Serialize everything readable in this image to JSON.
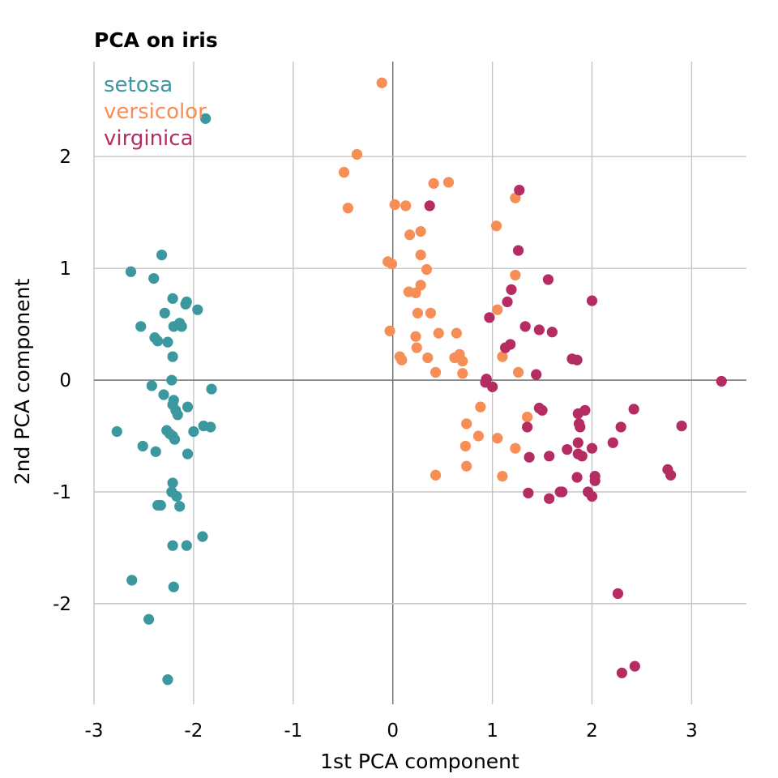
{
  "chart_data": {
    "type": "scatter",
    "title": "PCA on iris",
    "xlabel": "1st PCA component",
    "ylabel": "2nd PCA component",
    "xlim": [
      -3.0,
      3.55
    ],
    "ylim": [
      -2.9,
      2.85
    ],
    "x_ticks": [
      -3,
      -2,
      -1,
      0,
      1,
      2,
      3
    ],
    "y_ticks": [
      -2,
      -1,
      0,
      1,
      2
    ],
    "grid": true,
    "zero_lines": true,
    "legend_position": "top-left",
    "series": [
      {
        "name": "setosa",
        "color": "#3a989e",
        "points": [
          [
            -1.88,
            2.34
          ],
          [
            -2.63,
            0.97
          ],
          [
            -2.4,
            0.91
          ],
          [
            -2.32,
            1.12
          ],
          [
            -2.53,
            0.48
          ],
          [
            -2.29,
            0.6
          ],
          [
            -2.21,
            0.73
          ],
          [
            -2.07,
            0.7
          ],
          [
            -2.08,
            0.68
          ],
          [
            -2.14,
            0.51
          ],
          [
            -2.12,
            0.48
          ],
          [
            -2.2,
            0.48
          ],
          [
            -2.39,
            0.38
          ],
          [
            -2.36,
            0.35
          ],
          [
            -2.26,
            0.34
          ],
          [
            -1.96,
            0.63
          ],
          [
            -2.21,
            0.21
          ],
          [
            -2.42,
            -0.05
          ],
          [
            -2.22,
            0.0
          ],
          [
            -2.3,
            -0.13
          ],
          [
            -2.2,
            -0.18
          ],
          [
            -2.21,
            -0.22
          ],
          [
            -2.18,
            -0.27
          ],
          [
            -2.16,
            -0.31
          ],
          [
            -2.06,
            -0.24
          ],
          [
            -1.82,
            -0.08
          ],
          [
            -1.9,
            -0.41
          ],
          [
            -1.83,
            -0.42
          ],
          [
            -2.0,
            -0.46
          ],
          [
            -2.27,
            -0.45
          ],
          [
            -2.24,
            -0.48
          ],
          [
            -2.21,
            -0.5
          ],
          [
            -2.19,
            -0.53
          ],
          [
            -2.77,
            -0.46
          ],
          [
            -2.51,
            -0.59
          ],
          [
            -2.38,
            -0.64
          ],
          [
            -2.06,
            -0.66
          ],
          [
            -2.21,
            -0.92
          ],
          [
            -2.22,
            -1.0
          ],
          [
            -2.17,
            -1.04
          ],
          [
            -2.36,
            -1.12
          ],
          [
            -2.33,
            -1.12
          ],
          [
            -2.14,
            -1.13
          ],
          [
            -1.91,
            -1.4
          ],
          [
            -2.21,
            -1.48
          ],
          [
            -2.07,
            -1.48
          ],
          [
            -2.62,
            -1.79
          ],
          [
            -2.2,
            -1.85
          ],
          [
            -2.45,
            -2.14
          ],
          [
            -2.26,
            -2.68
          ]
        ]
      },
      {
        "name": "versicolor",
        "color": "#f68e55",
        "points": [
          [
            -0.11,
            2.66
          ],
          [
            -0.36,
            2.02
          ],
          [
            -0.49,
            1.86
          ],
          [
            -0.45,
            1.54
          ],
          [
            0.41,
            1.76
          ],
          [
            0.56,
            1.77
          ],
          [
            0.02,
            1.57
          ],
          [
            0.13,
            1.56
          ],
          [
            1.23,
            1.63
          ],
          [
            1.04,
            1.38
          ],
          [
            0.17,
            1.3
          ],
          [
            0.28,
            1.33
          ],
          [
            -0.05,
            1.06
          ],
          [
            -0.01,
            1.04
          ],
          [
            0.28,
            1.12
          ],
          [
            0.34,
            0.99
          ],
          [
            0.16,
            0.79
          ],
          [
            0.23,
            0.78
          ],
          [
            0.28,
            0.85
          ],
          [
            1.23,
            0.94
          ],
          [
            0.38,
            0.6
          ],
          [
            0.25,
            0.6
          ],
          [
            1.05,
            0.63
          ],
          [
            -0.03,
            0.44
          ],
          [
            0.46,
            0.42
          ],
          [
            0.64,
            0.42
          ],
          [
            0.23,
            0.39
          ],
          [
            0.24,
            0.29
          ],
          [
            0.07,
            0.21
          ],
          [
            0.09,
            0.18
          ],
          [
            0.35,
            0.2
          ],
          [
            0.62,
            0.2
          ],
          [
            0.67,
            0.23
          ],
          [
            0.7,
            0.17
          ],
          [
            1.1,
            0.21
          ],
          [
            0.43,
            0.07
          ],
          [
            0.7,
            0.06
          ],
          [
            1.26,
            0.07
          ],
          [
            0.88,
            -0.24
          ],
          [
            0.74,
            -0.39
          ],
          [
            1.35,
            -0.33
          ],
          [
            0.86,
            -0.5
          ],
          [
            1.05,
            -0.52
          ],
          [
            0.73,
            -0.59
          ],
          [
            1.23,
            -0.61
          ],
          [
            0.74,
            -0.77
          ],
          [
            1.1,
            -0.86
          ],
          [
            0.43,
            -0.85
          ]
        ]
      },
      {
        "name": "virginica",
        "color": "#b52c63",
        "points": [
          [
            0.37,
            1.56
          ],
          [
            1.27,
            1.7
          ],
          [
            1.26,
            1.16
          ],
          [
            1.56,
            0.9
          ],
          [
            1.19,
            0.81
          ],
          [
            2.0,
            0.71
          ],
          [
            1.15,
            0.7
          ],
          [
            0.97,
            0.56
          ],
          [
            1.33,
            0.48
          ],
          [
            1.47,
            0.45
          ],
          [
            1.6,
            0.43
          ],
          [
            1.18,
            0.32
          ],
          [
            1.13,
            0.29
          ],
          [
            1.8,
            0.19
          ],
          [
            1.85,
            0.18
          ],
          [
            1.44,
            0.05
          ],
          [
            0.94,
            0.01
          ],
          [
            0.93,
            -0.02
          ],
          [
            1.0,
            -0.06
          ],
          [
            3.3,
            -0.01
          ],
          [
            1.47,
            -0.25
          ],
          [
            1.5,
            -0.27
          ],
          [
            1.86,
            -0.3
          ],
          [
            2.42,
            -0.26
          ],
          [
            1.87,
            -0.39
          ],
          [
            1.88,
            -0.42
          ],
          [
            1.35,
            -0.42
          ],
          [
            2.29,
            -0.42
          ],
          [
            2.9,
            -0.41
          ],
          [
            1.86,
            -0.56
          ],
          [
            2.21,
            -0.56
          ],
          [
            2.0,
            -0.61
          ],
          [
            1.86,
            -0.66
          ],
          [
            1.9,
            -0.68
          ],
          [
            1.57,
            -0.68
          ],
          [
            1.37,
            -0.69
          ],
          [
            2.76,
            -0.8
          ],
          [
            2.79,
            -0.85
          ],
          [
            2.03,
            -0.86
          ],
          [
            1.85,
            -0.87
          ],
          [
            2.03,
            -0.9
          ],
          [
            1.68,
            -1.0
          ],
          [
            1.36,
            -1.01
          ],
          [
            1.96,
            -1.0
          ],
          [
            2.0,
            -1.04
          ],
          [
            1.57,
            -1.06
          ],
          [
            2.26,
            -1.91
          ],
          [
            2.3,
            -2.62
          ],
          [
            2.43,
            -2.56
          ],
          [
            1.7,
            -1.0
          ],
          [
            1.75,
            -0.62
          ],
          [
            1.93,
            -0.27
          ]
        ]
      }
    ]
  }
}
